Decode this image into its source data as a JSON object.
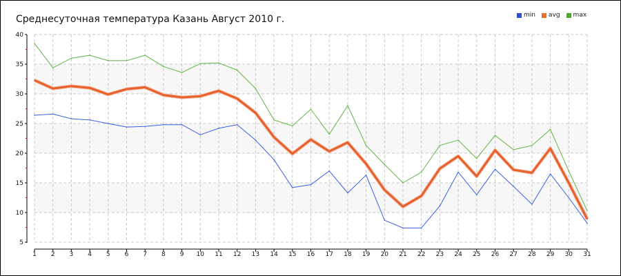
{
  "chart_data": {
    "type": "line",
    "title": "Среднесуточная температура Казань  Август 2010 г.",
    "xlabel": "",
    "ylabel": "",
    "ylim": [
      5,
      40
    ],
    "yticks": [
      5,
      10,
      15,
      20,
      25,
      30,
      35,
      40
    ],
    "x": [
      1,
      2,
      3,
      4,
      5,
      6,
      7,
      8,
      9,
      10,
      11,
      12,
      13,
      14,
      15,
      16,
      17,
      18,
      19,
      20,
      21,
      22,
      23,
      24,
      25,
      26,
      27,
      28,
      29,
      30,
      31
    ],
    "grid": true,
    "legend_position": "top-right",
    "series": [
      {
        "name": "min",
        "color": "#3a5fe6",
        "values": [
          26.4,
          26.6,
          25.8,
          25.6,
          25.0,
          24.4,
          24.5,
          24.8,
          24.8,
          23.1,
          24.2,
          24.8,
          22.2,
          18.9,
          14.2,
          14.7,
          17.0,
          13.3,
          16.3,
          8.7,
          7.4,
          7.4,
          11.1,
          16.8,
          13.0,
          17.3,
          14.4,
          11.4,
          16.5,
          12.5,
          8.2
        ]
      },
      {
        "name": "avg",
        "color": "#e8602c",
        "values": [
          32.3,
          30.9,
          31.3,
          31.0,
          29.9,
          30.8,
          31.1,
          29.8,
          29.4,
          29.6,
          30.5,
          29.2,
          26.8,
          22.7,
          19.9,
          22.3,
          20.3,
          21.8,
          18.2,
          13.8,
          11.0,
          12.8,
          17.4,
          19.5,
          16.1,
          20.5,
          17.2,
          16.7,
          20.8,
          15.0,
          8.9
        ]
      },
      {
        "name": "max",
        "color": "#62b343",
        "values": [
          38.5,
          34.4,
          36.0,
          36.5,
          35.6,
          35.6,
          36.5,
          34.6,
          33.6,
          35.1,
          35.2,
          34.0,
          30.9,
          25.6,
          24.6,
          27.4,
          23.2,
          28.0,
          21.3,
          18.1,
          15.0,
          16.8,
          21.3,
          22.2,
          19.1,
          23.0,
          20.6,
          21.3,
          24.0,
          17.0,
          10.3
        ]
      }
    ]
  }
}
